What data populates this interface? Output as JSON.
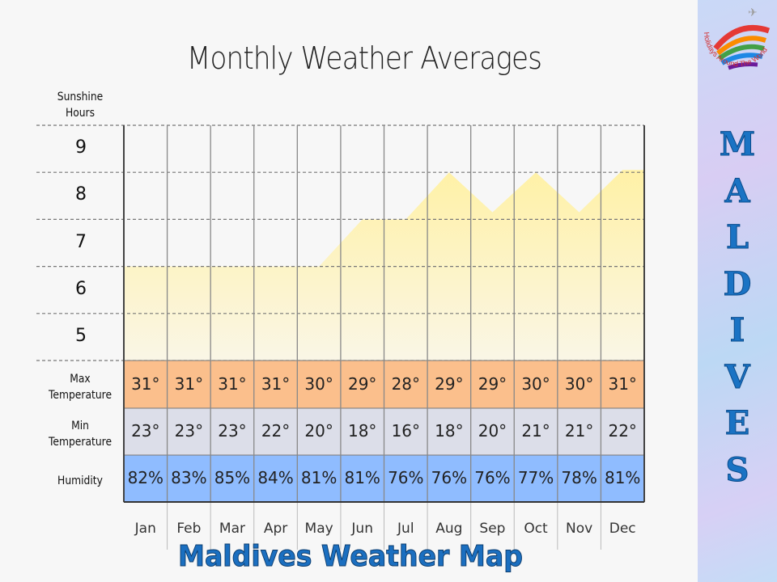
{
  "title": "Monthly Weather Averages",
  "row_labels": {
    "sunshine": "Sunshine\nHours",
    "max": "Max\nTemperature",
    "min": "Min\nTemperature",
    "humidity": "Humidity"
  },
  "colors": {
    "sunshine": "#fff1a6",
    "max": "#fbbf8c",
    "min": "#dcdee9",
    "humidity": "#8fbcff",
    "footer": "#1b6fc0",
    "side_letters": "#1a73c4"
  },
  "chart_data": {
    "type": "area",
    "ylabel": "Sunshine Hours",
    "categories": [
      "Jan",
      "Feb",
      "Mar",
      "Apr",
      "May",
      "Jun",
      "Jul",
      "Aug",
      "Sep",
      "Oct",
      "Nov",
      "Dec"
    ],
    "yticks": [
      "9",
      "8",
      "7",
      "6",
      "5"
    ],
    "ylim": [
      4.5,
      9.5
    ],
    "sunshine_hours": [
      6.5,
      6.5,
      6.5,
      6.5,
      6.5,
      7.5,
      7.5,
      8.5,
      7.65,
      8.5,
      7.65,
      8.55
    ],
    "max_temperature": [
      "31°",
      "31°",
      "31°",
      "31°",
      "30°",
      "29°",
      "28°",
      "29°",
      "29°",
      "30°",
      "30°",
      "31°"
    ],
    "min_temperature": [
      "23°",
      "23°",
      "23°",
      "22°",
      "20°",
      "18°",
      "16°",
      "18°",
      "20°",
      "21°",
      "21°",
      "22°"
    ],
    "humidity": [
      "82%",
      "83%",
      "85%",
      "84%",
      "81%",
      "81%",
      "76%",
      "76%",
      "76%",
      "77%",
      "78%",
      "81%"
    ],
    "grid": true
  },
  "footer": "Maldives Weather Map",
  "sidebar": {
    "logo_text": "Holidays Around The World",
    "letters": [
      "M",
      "A",
      "L",
      "D",
      "I",
      "V",
      "E",
      "S"
    ]
  }
}
